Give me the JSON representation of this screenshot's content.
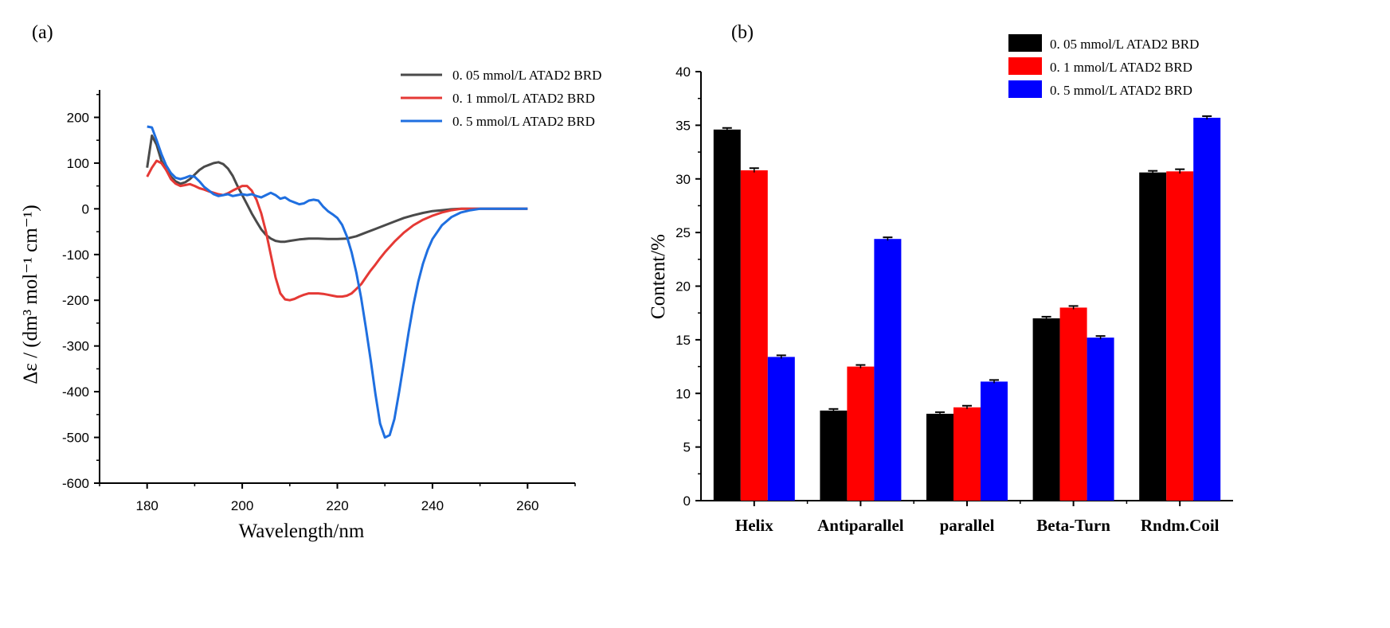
{
  "panels": {
    "a": {
      "label": "(a)"
    },
    "b": {
      "label": "(b)"
    }
  },
  "chart_data": [
    {
      "type": "line",
      "panel": "(a)",
      "title": "",
      "xlabel": "Wavelength/nm",
      "ylabel": "Δε / (dm³ mol⁻¹ cm⁻¹)",
      "xlim": [
        170,
        270
      ],
      "ylim": [
        -600,
        260
      ],
      "xticks": [
        180,
        200,
        220,
        240,
        260
      ],
      "yticks": [
        200,
        100,
        0,
        -100,
        -200,
        -300,
        -400,
        -500,
        -600
      ],
      "legend_position": "top-right",
      "grid": false,
      "series": [
        {
          "name": "0. 05 mmol/L ATAD2 BRD",
          "color": "#4a4a4a",
          "points": [
            [
              180,
              90
            ],
            [
              181,
              160
            ],
            [
              182,
              140
            ],
            [
              183,
              105
            ],
            [
              184,
              85
            ],
            [
              185,
              70
            ],
            [
              186,
              60
            ],
            [
              187,
              55
            ],
            [
              188,
              58
            ],
            [
              189,
              65
            ],
            [
              190,
              75
            ],
            [
              191,
              85
            ],
            [
              192,
              92
            ],
            [
              193,
              96
            ],
            [
              194,
              100
            ],
            [
              195,
              102
            ],
            [
              196,
              98
            ],
            [
              197,
              88
            ],
            [
              198,
              72
            ],
            [
              199,
              50
            ],
            [
              200,
              30
            ],
            [
              201,
              10
            ],
            [
              202,
              -10
            ],
            [
              203,
              -28
            ],
            [
              204,
              -45
            ],
            [
              205,
              -57
            ],
            [
              206,
              -65
            ],
            [
              207,
              -70
            ],
            [
              208,
              -72
            ],
            [
              209,
              -72
            ],
            [
              210,
              -70
            ],
            [
              212,
              -67
            ],
            [
              214,
              -65
            ],
            [
              216,
              -65
            ],
            [
              218,
              -66
            ],
            [
              220,
              -66
            ],
            [
              222,
              -65
            ],
            [
              224,
              -60
            ],
            [
              226,
              -52
            ],
            [
              228,
              -44
            ],
            [
              230,
              -36
            ],
            [
              232,
              -28
            ],
            [
              234,
              -20
            ],
            [
              236,
              -14
            ],
            [
              238,
              -9
            ],
            [
              240,
              -5
            ],
            [
              242,
              -3
            ],
            [
              244,
              -1
            ],
            [
              246,
              0
            ],
            [
              250,
              0
            ],
            [
              255,
              0
            ],
            [
              260,
              0
            ]
          ]
        },
        {
          "name": "0. 1 mmol/L ATAD2 BRD",
          "color": "#e53935",
          "points": [
            [
              180,
              70
            ],
            [
              181,
              90
            ],
            [
              182,
              105
            ],
            [
              183,
              100
            ],
            [
              184,
              85
            ],
            [
              185,
              65
            ],
            [
              186,
              55
            ],
            [
              187,
              50
            ],
            [
              188,
              52
            ],
            [
              189,
              54
            ],
            [
              190,
              50
            ],
            [
              191,
              45
            ],
            [
              192,
              42
            ],
            [
              193,
              38
            ],
            [
              194,
              35
            ],
            [
              195,
              32
            ],
            [
              196,
              30
            ],
            [
              197,
              34
            ],
            [
              198,
              40
            ],
            [
              199,
              45
            ],
            [
              200,
              50
            ],
            [
              201,
              50
            ],
            [
              202,
              40
            ],
            [
              203,
              20
            ],
            [
              204,
              -10
            ],
            [
              205,
              -50
            ],
            [
              206,
              -100
            ],
            [
              207,
              -150
            ],
            [
              208,
              -185
            ],
            [
              209,
              -198
            ],
            [
              210,
              -200
            ],
            [
              211,
              -197
            ],
            [
              212,
              -192
            ],
            [
              213,
              -188
            ],
            [
              214,
              -185
            ],
            [
              215,
              -185
            ],
            [
              216,
              -185
            ],
            [
              217,
              -186
            ],
            [
              218,
              -188
            ],
            [
              219,
              -190
            ],
            [
              220,
              -192
            ],
            [
              221,
              -192
            ],
            [
              222,
              -190
            ],
            [
              223,
              -185
            ],
            [
              224,
              -175
            ],
            [
              225,
              -165
            ],
            [
              226,
              -150
            ],
            [
              227,
              -135
            ],
            [
              228,
              -122
            ],
            [
              229,
              -108
            ],
            [
              230,
              -95
            ],
            [
              232,
              -72
            ],
            [
              234,
              -52
            ],
            [
              236,
              -36
            ],
            [
              238,
              -24
            ],
            [
              240,
              -15
            ],
            [
              242,
              -8
            ],
            [
              244,
              -3
            ],
            [
              246,
              0
            ],
            [
              250,
              0
            ],
            [
              255,
              0
            ],
            [
              260,
              0
            ]
          ]
        },
        {
          "name": "0. 5 mmol/L ATAD2 BRD",
          "color": "#1f6fe0",
          "points": [
            [
              180,
              180
            ],
            [
              181,
              178
            ],
            [
              182,
              150
            ],
            [
              183,
              120
            ],
            [
              184,
              95
            ],
            [
              185,
              78
            ],
            [
              186,
              68
            ],
            [
              187,
              65
            ],
            [
              188,
              68
            ],
            [
              189,
              72
            ],
            [
              190,
              70
            ],
            [
              191,
              60
            ],
            [
              192,
              48
            ],
            [
              193,
              40
            ],
            [
              194,
              32
            ],
            [
              195,
              28
            ],
            [
              196,
              30
            ],
            [
              197,
              32
            ],
            [
              198,
              28
            ],
            [
              199,
              30
            ],
            [
              200,
              32
            ],
            [
              201,
              30
            ],
            [
              202,
              32
            ],
            [
              203,
              28
            ],
            [
              204,
              25
            ],
            [
              205,
              30
            ],
            [
              206,
              35
            ],
            [
              207,
              30
            ],
            [
              208,
              22
            ],
            [
              209,
              25
            ],
            [
              210,
              18
            ],
            [
              211,
              14
            ],
            [
              212,
              10
            ],
            [
              213,
              12
            ],
            [
              214,
              18
            ],
            [
              215,
              20
            ],
            [
              216,
              18
            ],
            [
              217,
              5
            ],
            [
              218,
              -5
            ],
            [
              219,
              -12
            ],
            [
              220,
              -20
            ],
            [
              221,
              -35
            ],
            [
              222,
              -60
            ],
            [
              223,
              -95
            ],
            [
              224,
              -140
            ],
            [
              225,
              -195
            ],
            [
              226,
              -260
            ],
            [
              227,
              -330
            ],
            [
              228,
              -405
            ],
            [
              229,
              -470
            ],
            [
              230,
              -500
            ],
            [
              231,
              -495
            ],
            [
              232,
              -460
            ],
            [
              233,
              -400
            ],
            [
              234,
              -335
            ],
            [
              235,
              -270
            ],
            [
              236,
              -210
            ],
            [
              237,
              -160
            ],
            [
              238,
              -120
            ],
            [
              239,
              -90
            ],
            [
              240,
              -66
            ],
            [
              242,
              -36
            ],
            [
              244,
              -18
            ],
            [
              246,
              -8
            ],
            [
              248,
              -3
            ],
            [
              250,
              0
            ],
            [
              255,
              0
            ],
            [
              260,
              0
            ]
          ]
        }
      ]
    },
    {
      "type": "bar",
      "panel": "(b)",
      "title": "",
      "xlabel": "",
      "ylabel": "Content/%",
      "ylim": [
        0,
        40
      ],
      "yticks": [
        0,
        5,
        10,
        15,
        20,
        25,
        30,
        35,
        40
      ],
      "legend_position": "top-right",
      "grid": false,
      "categories": [
        "Helix",
        "Antiparallel",
        "parallel",
        "Beta-Turn",
        "Rndm.Coil"
      ],
      "series": [
        {
          "name": "0. 05 mmol/L ATAD2 BRD",
          "color": "#000000",
          "values": [
            34.6,
            8.4,
            8.1,
            17.0,
            30.6
          ],
          "errors": [
            0.15,
            0.15,
            0.15,
            0.15,
            0.15
          ]
        },
        {
          "name": "0. 1 mmol/L ATAD2 BRD",
          "color": "#ff0000",
          "values": [
            30.8,
            12.5,
            8.7,
            18.0,
            30.7
          ],
          "errors": [
            0.2,
            0.15,
            0.15,
            0.15,
            0.2
          ]
        },
        {
          "name": "0. 5 mmol/L ATAD2 BRD",
          "color": "#0000ff",
          "values": [
            13.4,
            24.4,
            11.1,
            15.2,
            35.7
          ],
          "errors": [
            0.15,
            0.15,
            0.15,
            0.15,
            0.15
          ]
        }
      ]
    }
  ]
}
